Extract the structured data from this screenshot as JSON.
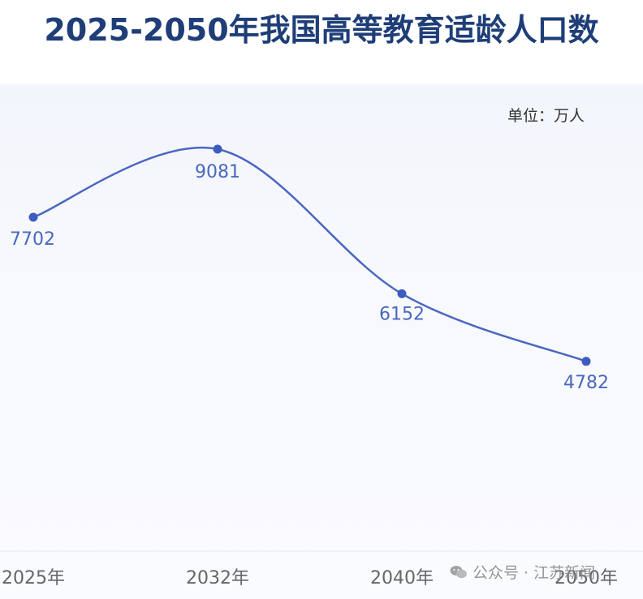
{
  "title": "2025-2050年我国高等教育适龄人口数",
  "unit_label": "单位：万人",
  "watermark": "公众号 · 江苏新闻",
  "colors": {
    "title": "#1f3e78",
    "series": "#4a67c0",
    "tick": "#666666"
  },
  "chart_data": {
    "type": "line",
    "title": "2025-2050年我国高等教育适龄人口数",
    "categories": [
      "2025年",
      "2032年",
      "2040年",
      "2050年"
    ],
    "series": [
      {
        "values": [
          7702,
          9081,
          6152,
          4782
        ]
      }
    ],
    "data_labels": [
      "7702",
      "9081",
      "6152",
      "4782"
    ],
    "unit": "万人",
    "smooth": true,
    "grid": false,
    "legend": "none"
  }
}
